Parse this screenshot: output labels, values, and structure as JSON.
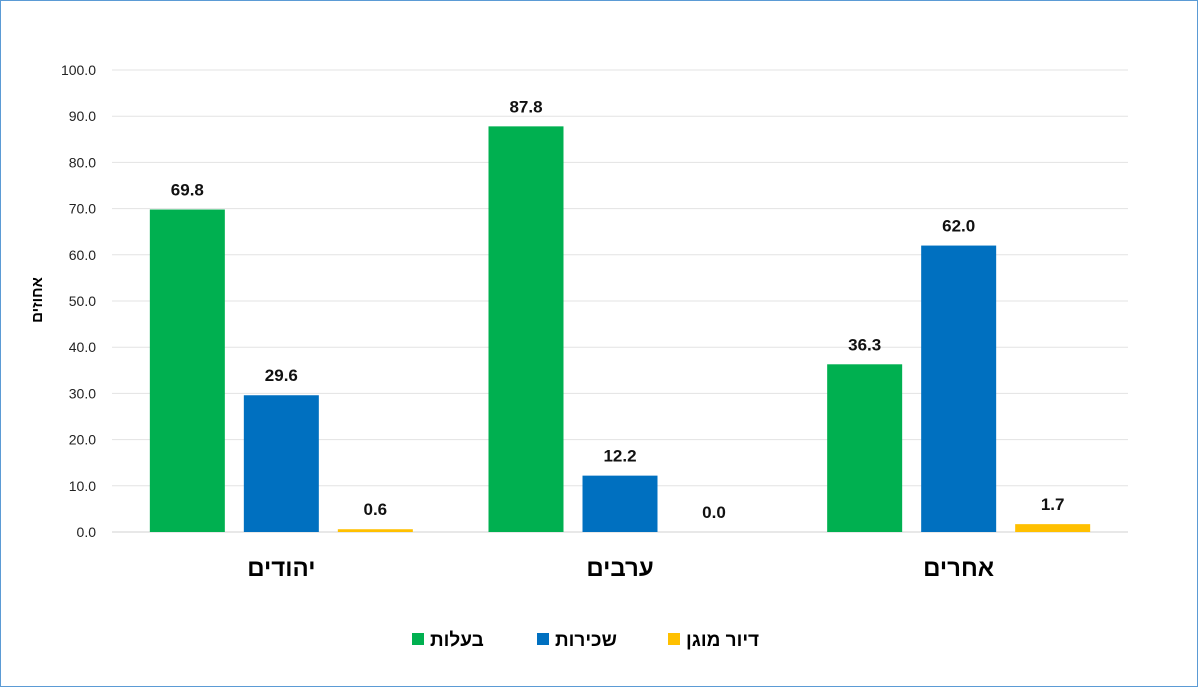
{
  "chart_data": {
    "type": "bar",
    "categories": [
      "יהודים",
      "ערבים",
      "אחרים"
    ],
    "series": [
      {
        "name": "בעלות",
        "color": "#00b050",
        "values": [
          69.8,
          87.8,
          36.3
        ]
      },
      {
        "name": "שכירות",
        "color": "#0070c0",
        "values": [
          29.6,
          12.2,
          62.0
        ]
      },
      {
        "name": "דיור מוגן",
        "color": "#ffc000",
        "values": [
          0.6,
          0.0,
          1.7
        ]
      }
    ],
    "ylabel": "אחוזים",
    "ylim": [
      0,
      100
    ],
    "y_ticks": [
      "0.0",
      "10.0",
      "20.0",
      "30.0",
      "40.0",
      "50.0",
      "60.0",
      "70.0",
      "80.0",
      "90.0",
      "100.0"
    ],
    "grid": true,
    "legend_position": "bottom",
    "data_labels": true
  }
}
